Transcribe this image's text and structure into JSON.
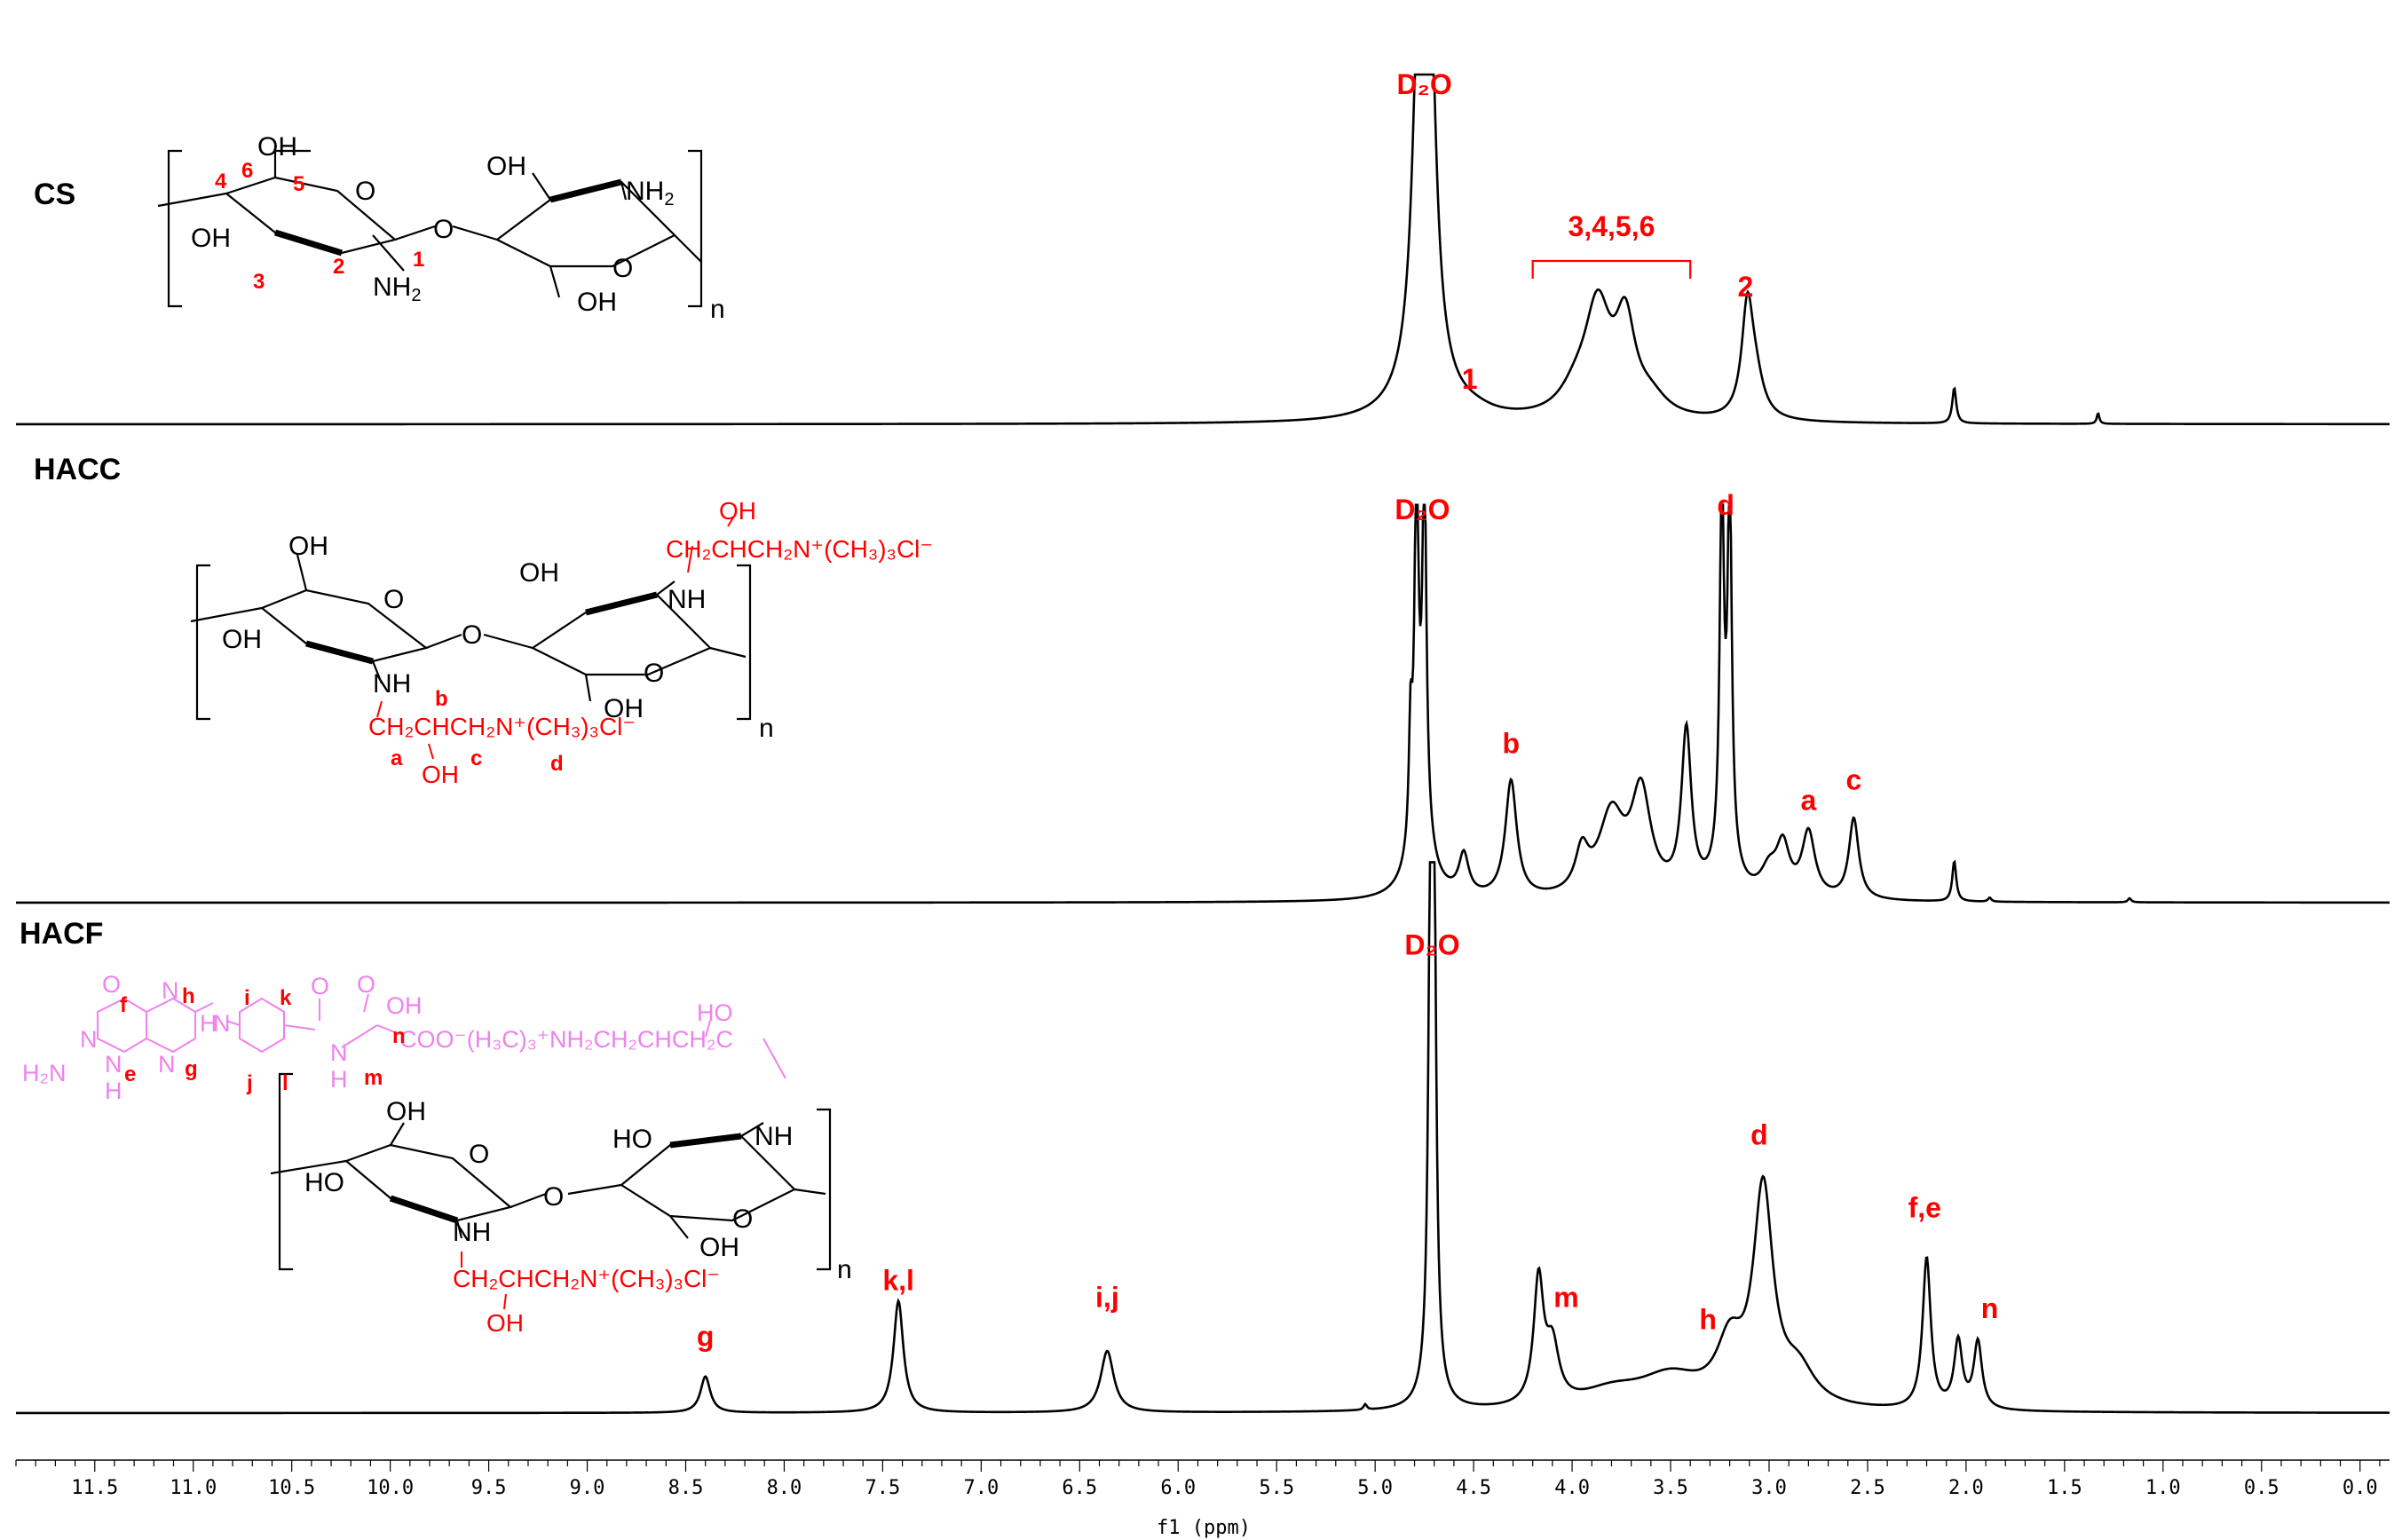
{
  "chart_data": {
    "type": "line",
    "title": "",
    "xlabel": "f1 (ppm)",
    "ylabel": "",
    "xlim": [
      11.9,
      -0.15
    ],
    "x_reversed": true,
    "grid": false,
    "xticks": [
      11.5,
      11.0,
      10.5,
      10.0,
      9.5,
      9.0,
      8.5,
      8.0,
      7.5,
      7.0,
      6.5,
      6.0,
      5.5,
      5.0,
      4.5,
      4.0,
      3.5,
      3.0,
      2.5,
      2.0,
      1.5,
      1.0,
      0.5,
      0.0
    ],
    "xtick_labels": [
      "11.5",
      "11.0",
      "10.5",
      "10.0",
      "9.5",
      "9.0",
      "8.5",
      "8.0",
      "7.5",
      "7.0",
      "6.5",
      "6.0",
      "5.5",
      "5.0",
      "4.5",
      "4.0",
      "3.5",
      "3.0",
      "2.5",
      "2.0",
      "1.5",
      "1.0",
      "0.5",
      "0.0"
    ],
    "peak_label_color": "#ff0000",
    "series": [
      {
        "name": "CS",
        "peaks": [
          {
            "ppm": 4.78,
            "height": 0.86,
            "width": 0.035
          },
          {
            "ppm": 4.72,
            "height": 0.86,
            "width": 0.035
          },
          {
            "ppm": 4.75,
            "height": 0.22,
            "width": 0.1
          },
          {
            "ppm": 4.5,
            "height": 0.015,
            "width": 0.12
          },
          {
            "ppm": 3.87,
            "height": 0.3,
            "width": 0.08
          },
          {
            "ppm": 3.73,
            "height": 0.25,
            "width": 0.06
          },
          {
            "ppm": 3.98,
            "height": 0.06,
            "width": 0.1
          },
          {
            "ppm": 3.6,
            "height": 0.05,
            "width": 0.1
          },
          {
            "ppm": 3.11,
            "height": 0.3,
            "width": 0.035
          },
          {
            "ppm": 3.07,
            "height": 0.1,
            "width": 0.05
          },
          {
            "ppm": 2.06,
            "height": 0.1,
            "width": 0.012
          },
          {
            "ppm": 1.33,
            "height": 0.03,
            "width": 0.008
          }
        ],
        "labels": [
          {
            "text": "D₂O",
            "ppm": 4.75,
            "row": 0.93
          },
          {
            "text": "1",
            "ppm": 4.52,
            "row": 0.1
          },
          {
            "text": "3,4,5,6",
            "ppm": 3.8,
            "row": 0.53
          },
          {
            "text": "2",
            "ppm": 3.12,
            "row": 0.36
          }
        ],
        "bracket": {
          "from_ppm": 4.2,
          "to_ppm": 3.4
        }
      },
      {
        "name": "HACC",
        "peaks": [
          {
            "ppm": 4.79,
            "height": 0.88,
            "width": 0.012
          },
          {
            "ppm": 4.75,
            "height": 0.88,
            "width": 0.012
          },
          {
            "ppm": 4.82,
            "height": 0.28,
            "width": 0.01
          },
          {
            "ppm": 4.77,
            "height": 0.2,
            "width": 0.06
          },
          {
            "ppm": 4.55,
            "height": 0.1,
            "width": 0.03
          },
          {
            "ppm": 4.31,
            "height": 0.29,
            "width": 0.035
          },
          {
            "ppm": 3.95,
            "height": 0.1,
            "width": 0.04
          },
          {
            "ppm": 3.8,
            "height": 0.2,
            "width": 0.08
          },
          {
            "ppm": 3.65,
            "height": 0.25,
            "width": 0.06
          },
          {
            "ppm": 3.42,
            "height": 0.4,
            "width": 0.03
          },
          {
            "ppm": 3.24,
            "height": 0.9,
            "width": 0.012
          },
          {
            "ppm": 3.2,
            "height": 0.9,
            "width": 0.012
          },
          {
            "ppm": 3.22,
            "height": 0.15,
            "width": 0.05
          },
          {
            "ppm": 3.0,
            "height": 0.06,
            "width": 0.05
          },
          {
            "ppm": 2.93,
            "height": 0.12,
            "width": 0.04
          },
          {
            "ppm": 2.8,
            "height": 0.16,
            "width": 0.04
          },
          {
            "ppm": 2.57,
            "height": 0.2,
            "width": 0.03
          },
          {
            "ppm": 2.06,
            "height": 0.1,
            "width": 0.012
          },
          {
            "ppm": 1.88,
            "height": 0.01,
            "width": 0.01
          },
          {
            "ppm": 1.17,
            "height": 0.01,
            "width": 0.01
          }
        ],
        "labels": [
          {
            "text": "D₂O",
            "ppm": 4.76,
            "row": 0.95
          },
          {
            "text": "d",
            "ppm": 3.22,
            "row": 0.96
          },
          {
            "text": "b",
            "ppm": 4.31,
            "row": 0.37
          },
          {
            "text": "a",
            "ppm": 2.8,
            "row": 0.23
          },
          {
            "text": "c",
            "ppm": 2.57,
            "row": 0.28
          }
        ]
      },
      {
        "name": "HACF",
        "peaks": [
          {
            "ppm": 4.72,
            "height": 0.77,
            "width": 0.012
          },
          {
            "ppm": 4.7,
            "height": 0.77,
            "width": 0.012
          },
          {
            "ppm": 4.71,
            "height": 0.1,
            "width": 0.04
          },
          {
            "ppm": 8.4,
            "height": 0.065,
            "width": 0.03
          },
          {
            "ppm": 7.42,
            "height": 0.2,
            "width": 0.03
          },
          {
            "ppm": 6.36,
            "height": 0.11,
            "width": 0.04
          },
          {
            "ppm": 4.17,
            "height": 0.22,
            "width": 0.03
          },
          {
            "ppm": 4.1,
            "height": 0.1,
            "width": 0.04
          },
          {
            "ppm": 3.8,
            "height": 0.03,
            "width": 0.2
          },
          {
            "ppm": 3.5,
            "height": 0.055,
            "width": 0.2
          },
          {
            "ppm": 3.2,
            "height": 0.1,
            "width": 0.08
          },
          {
            "ppm": 3.03,
            "height": 0.38,
            "width": 0.06
          },
          {
            "ppm": 2.85,
            "height": 0.06,
            "width": 0.1
          },
          {
            "ppm": 2.2,
            "height": 0.27,
            "width": 0.025
          },
          {
            "ppm": 2.04,
            "height": 0.12,
            "width": 0.025
          },
          {
            "ppm": 1.94,
            "height": 0.12,
            "width": 0.025
          },
          {
            "ppm": 5.05,
            "height": 0.01,
            "width": 0.01
          }
        ],
        "labels": [
          {
            "text": "D₂O",
            "ppm": 4.71,
            "row": 0.82
          },
          {
            "text": "g",
            "ppm": 8.4,
            "row": 0.12
          },
          {
            "text": "k,l",
            "ppm": 7.42,
            "row": 0.22
          },
          {
            "text": "i,j",
            "ppm": 6.36,
            "row": 0.19
          },
          {
            "text": "m",
            "ppm": 4.03,
            "row": 0.19
          },
          {
            "text": "h",
            "ppm": 3.31,
            "row": 0.15
          },
          {
            "text": "d",
            "ppm": 3.05,
            "row": 0.48
          },
          {
            "text": "f,e",
            "ppm": 2.21,
            "row": 0.35
          },
          {
            "text": "n",
            "ppm": 1.88,
            "row": 0.17
          }
        ]
      }
    ]
  },
  "structures": {
    "cs": {
      "oh_top": "OH",
      "oh_left": "OH",
      "oh_right": "OH",
      "oh_bottom": "OH",
      "nh2_top": "NH",
      "nh2_bottom": "NH",
      "sub2": "2",
      "o_ring1": "O",
      "o_ring2": "O",
      "o_link": "O",
      "n": "n",
      "pos1": "1",
      "pos2": "2",
      "pos3": "3",
      "pos4": "4",
      "pos5": "5",
      "pos6": "6"
    },
    "hacc": {
      "oh_top": "OH",
      "oh_left": "OH",
      "oh_right": "OH",
      "oh_bottom": "OH",
      "o_ring1": "O",
      "o_ring2": "O",
      "o_link": "O",
      "nh_top": "NH",
      "nh_bottom": "NH",
      "side_oh": "OH",
      "side_chain_top": "CH₂CHCH₂N⁺(CH₃)₃Cl⁻",
      "side_chain_bottom": "CH₂CHCH₂N⁺(CH₃)₃Cl⁻",
      "side_oh_bottom": "OH",
      "lab_a": "a",
      "lab_b": "b",
      "lab_c": "c",
      "lab_d": "d",
      "n": "n"
    },
    "hacf": {
      "folate_o": "O",
      "folate_h2n": "H₂N",
      "folate_n1": "N",
      "folate_n2": "N",
      "folate_n3": "N",
      "folate_h": "H",
      "folate_n4": "N",
      "folate_nh": "N",
      "folate_h2": "H",
      "amide_o": "O",
      "amide_o2": "O",
      "amide_oh": "OH",
      "amide_n": "N",
      "amide_h": "H",
      "chain": "COO⁻(H₃C)₃⁺NH₂CH₂CHCH₂C",
      "chain_oh": "HO",
      "lab_f": "f",
      "lab_h": "h",
      "lab_i": "i",
      "lab_k": "k",
      "lab_e": "e",
      "lab_g": "g",
      "lab_j": "j",
      "lab_l": "l",
      "lab_m": "m",
      "lab_n": "n",
      "oh_top": "OH",
      "oh_left": "HO",
      "oh_right_top": "HO",
      "oh_bottom": "OH",
      "o_ring1": "O",
      "o_ring2": "O",
      "o_link": "O",
      "nh_top": "NH",
      "nh_bottom": "NH",
      "side_chain": "CH₂CHCH₂N⁺(CH₃)₃Cl⁻",
      "side_oh": "OH",
      "n": "n"
    }
  }
}
